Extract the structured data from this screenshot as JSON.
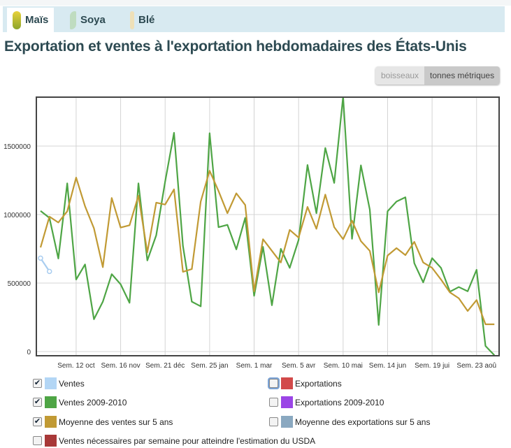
{
  "tabs": [
    {
      "label": "Maïs",
      "icon": "corn-icon",
      "active": true
    },
    {
      "label": "Soya",
      "icon": "soybean-icon",
      "active": false
    },
    {
      "label": "Blé",
      "icon": "wheat-icon",
      "active": false
    }
  ],
  "title": "Exportation et ventes à l'exportation hebdomadaires des États-Unis",
  "units": {
    "options": [
      "boisseaux",
      "tonnes métriques"
    ],
    "selected": "tonnes métriques"
  },
  "chart_data": {
    "type": "line",
    "grid": true,
    "ylim": [
      0,
      1850000
    ],
    "yticks": [
      "0",
      "500000",
      "1000000",
      "1500000"
    ],
    "x_tick_labels": [
      "Sem. 12 oct",
      "Sem. 16 nov",
      "Sem. 21 déc",
      "Sem. 25 jan",
      "Sem. 1 mar",
      "Sem. 5 avr",
      "Sem. 10 mai",
      "Sem. 14 jun",
      "Sem. 19 jui",
      "Sem. 23 aoû"
    ],
    "series": [
      {
        "name": "Ventes",
        "color": "#a9cdf0",
        "values": [
          682000,
          585000
        ]
      },
      {
        "name": "Ventes 2009-2010",
        "color": "#4ea545",
        "values": [
          1027000,
          976000,
          679000,
          1228000,
          526000,
          636000,
          236000,
          364000,
          565000,
          491000,
          356000,
          1228000,
          665000,
          849000,
          1240000,
          1597000,
          772000,
          364000,
          330000,
          1594000,
          908000,
          925000,
          746000,
          976000,
          407000,
          764000,
          338000,
          750000,
          611000,
          815000,
          1362000,
          1010000,
          1486000,
          1231000,
          1861000,
          823000,
          1359000,
          1036000,
          194000,
          1024000,
          1095000,
          1126000,
          645000,
          505000,
          682000,
          611000,
          437000,
          471000,
          440000,
          597000,
          41000,
          -27000
        ]
      },
      {
        "name": "Moyenne des ventes sur 5 ans",
        "color": "#c19a34",
        "values": [
          760000,
          985000,
          942000,
          1024000,
          1270000,
          1061000,
          900000,
          616000,
          1121000,
          905000,
          922000,
          1138000,
          724000,
          1087000,
          1073000,
          1184000,
          582000,
          602000,
          1095000,
          1320000,
          1172000,
          1010000,
          1155000,
          1070000,
          440000,
          820000,
          735000,
          650000,
          888000,
          832000,
          1056000,
          896000,
          1146000,
          908000,
          820000,
          956000,
          806000,
          735000,
          432000,
          701000,
          755000,
          704000,
          801000,
          650000,
          611000,
          526000,
          432000,
          389000,
          296000,
          376000,
          199000,
          199000
        ]
      }
    ]
  },
  "legend": [
    {
      "label": "Ventes",
      "color": "#b3d6f5",
      "checked": true
    },
    {
      "label": "Exportations",
      "color": "#d24a4a",
      "checked": false
    },
    {
      "label": "Ventes 2009-2010",
      "color": "#4ea545",
      "checked": true
    },
    {
      "label": "Exportations 2009-2010",
      "color": "#9b45e6",
      "checked": false
    },
    {
      "label": "Moyenne des ventes sur 5 ans",
      "color": "#c19a34",
      "checked": true
    },
    {
      "label": "Moyenne des exportations sur 5 ans",
      "color": "#8aa8c0",
      "checked": false
    },
    {
      "label": "Ventes nécessaires par semaine pour atteindre l'estimation du USDA",
      "color": "#a83838",
      "checked": false
    }
  ]
}
